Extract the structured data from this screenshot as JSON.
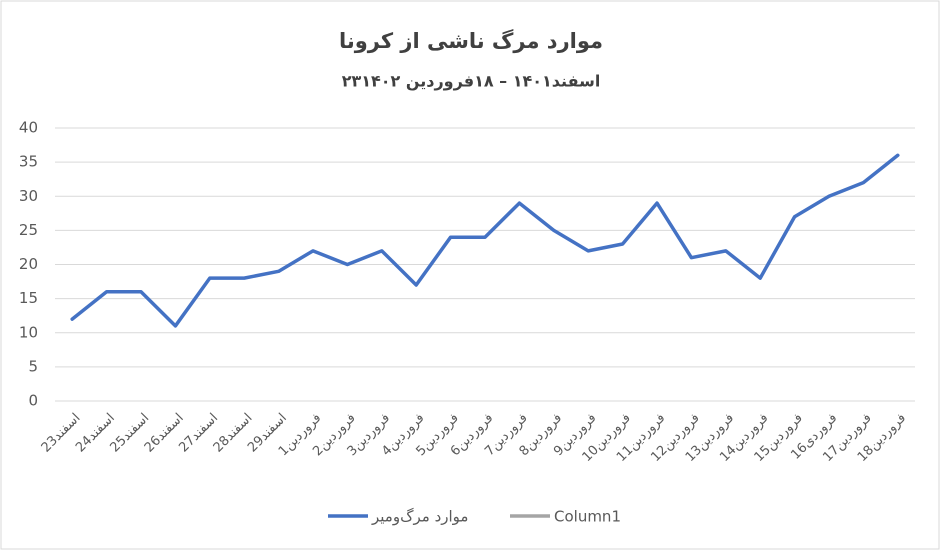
{
  "chart_data": {
    "type": "line",
    "title": "موارد مرگ ناشی از کرونا",
    "subtitle": "۲۳اسفند۱۴۰۱ – ۱۸فروردین ۱۴۰۲",
    "categories": [
      "23اسفند",
      "24اسفند",
      "25اسفند",
      "26اسفند",
      "27اسفند",
      "28اسفند",
      "29اسفند",
      "1فروردین",
      "2فروردین",
      "3فروردین",
      "4فروردین",
      "5فروردین",
      "6فروردین",
      "7فروردین",
      "8فروردین",
      "9فروردین",
      "10فروردین",
      "11فروردین",
      "12فروردین",
      "13فروردین",
      "14فروردین",
      "15فروردین",
      "16فروردی",
      "17فروردین",
      "18فروردین"
    ],
    "series": [
      {
        "name": "موارد مرگ‌ومیر",
        "color": "#4472c4",
        "values": [
          12,
          16,
          16,
          11,
          18,
          18,
          19,
          22,
          20,
          22,
          17,
          24,
          24,
          29,
          25,
          22,
          23,
          29,
          21,
          22,
          18,
          27,
          30,
          32,
          36
        ]
      },
      {
        "name": "Column1",
        "color": "#a5a5a5",
        "values": [
          null,
          null,
          null,
          null,
          null,
          null,
          null,
          null,
          null,
          null,
          null,
          null,
          null,
          null,
          null,
          null,
          null,
          null,
          null,
          null,
          null,
          null,
          null,
          null,
          null
        ]
      }
    ],
    "ylim": [
      0,
      40
    ],
    "yticks": [
      0,
      5,
      10,
      15,
      20,
      25,
      30,
      35,
      40
    ],
    "grid": true,
    "legend": "bottom"
  }
}
